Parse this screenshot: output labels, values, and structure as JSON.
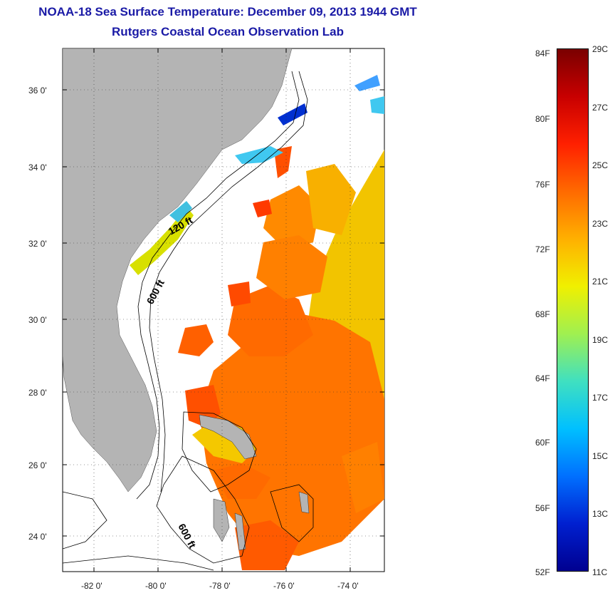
{
  "title": "NOAA-18 Sea Surface Temperature:  December 09, 2013 1944 GMT",
  "subtitle": "Rutgers Coastal Ocean Observation Lab",
  "map": {
    "lat_labels": [
      "36 0'",
      "34 0'",
      "32 0'",
      "30 0'",
      "28 0'",
      "26 0'",
      "24 0'"
    ],
    "lon_labels": [
      "-82 0'",
      "-80 0'",
      "-78 0'",
      "-76 0'",
      "-74 0'"
    ],
    "isobath_labels": [
      "120 ft",
      "600 ft",
      "600 ft"
    ],
    "land_color": "#b4b4b4",
    "cloud_color": "#ffffff"
  },
  "colorbar": {
    "fahrenheit": [
      "84F",
      "80F",
      "76F",
      "72F",
      "68F",
      "64F",
      "60F",
      "56F",
      "52F"
    ],
    "celsius": [
      "29C",
      "27C",
      "25C",
      "23C",
      "21C",
      "19C",
      "17C",
      "15C",
      "13C",
      "11C"
    ],
    "colors_top_to_bottom": [
      "#7a0000",
      "#c80000",
      "#ff2000",
      "#ff6a00",
      "#ffb000",
      "#f0f000",
      "#a0f050",
      "#40e0c0",
      "#00c0ff",
      "#0070ff",
      "#0020d0",
      "#000090"
    ]
  }
}
